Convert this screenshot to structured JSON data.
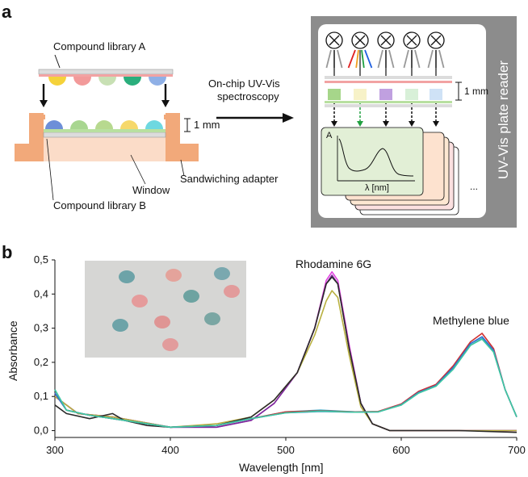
{
  "panel_a": {
    "letter": "a",
    "compound_library_a": "Compound library A",
    "compound_library_b": "Compound library B",
    "window": "Window",
    "sandwiching_adapter": "Sandwiching adapter",
    "spacing_left": "1 mm",
    "spacing_right": "1 mm",
    "arrow_label_line1": "On-chip UV-Vis",
    "arrow_label_line2": "spectroscopy",
    "reader_label": "UV-Vis plate reader",
    "spectrum_y": "A",
    "spectrum_x": "λ [nm]",
    "ellipsis": "...",
    "drop_colors_top": [
      "#f5d23a",
      "#f29a9a",
      "#c8e0b4",
      "#2aae7c",
      "#8fb0e6"
    ],
    "drop_colors_bottom": [
      "#6d8fd8",
      "#a8d690",
      "#b7d98f",
      "#f6d86a",
      "#6ed8e0"
    ]
  },
  "panel_b": {
    "letter": "b",
    "annotation_rhodamine": "Rhodamine 6G",
    "annotation_methylene": "Methylene blue"
  },
  "chart_data": {
    "type": "line",
    "xlabel": "Wavelength [nm]",
    "ylabel": "Absorbance",
    "xlim": [
      300,
      700
    ],
    "ylim": [
      -0.02,
      0.5
    ],
    "x_ticks": [
      "300",
      "400",
      "500",
      "600",
      "700"
    ],
    "y_ticks": [
      "0,0",
      "0,1",
      "0,2",
      "0,3",
      "0,4",
      "0,5"
    ],
    "y_tick_values": [
      0.0,
      0.1,
      0.2,
      0.3,
      0.4,
      0.5
    ],
    "x_tick_values": [
      300,
      400,
      500,
      600,
      700
    ],
    "series": [
      {
        "color": "#e040e0",
        "x": [
          300,
          320,
          350,
          400,
          440,
          470,
          490,
          510,
          525,
          535,
          540,
          545,
          555,
          565,
          575,
          590,
          620,
          650,
          700
        ],
        "values": [
          0.1,
          0.05,
          0.04,
          0.01,
          0.01,
          0.03,
          0.08,
          0.17,
          0.3,
          0.44,
          0.465,
          0.44,
          0.25,
          0.08,
          0.02,
          0.0,
          0.0,
          0.0,
          0.0
        ]
      },
      {
        "color": "#7a2a9a",
        "x": [
          300,
          320,
          350,
          400,
          440,
          470,
          490,
          510,
          525,
          535,
          540,
          545,
          555,
          565,
          575,
          590,
          620,
          650,
          700
        ],
        "values": [
          0.1,
          0.05,
          0.04,
          0.01,
          0.01,
          0.03,
          0.08,
          0.17,
          0.3,
          0.43,
          0.455,
          0.43,
          0.24,
          0.08,
          0.02,
          0.0,
          0.0,
          0.0,
          0.0
        ]
      },
      {
        "color": "#b8b040",
        "x": [
          300,
          320,
          350,
          400,
          440,
          470,
          490,
          510,
          525,
          535,
          540,
          545,
          555,
          565,
          575,
          590,
          620,
          650,
          700
        ],
        "values": [
          0.1,
          0.05,
          0.04,
          0.01,
          0.02,
          0.04,
          0.09,
          0.17,
          0.28,
          0.38,
          0.41,
          0.39,
          0.22,
          0.07,
          0.02,
          0.0,
          0.0,
          0.0,
          0.0
        ]
      },
      {
        "color": "#2a2a2a",
        "x": [
          300,
          310,
          330,
          350,
          360,
          380,
          400,
          440,
          470,
          490,
          510,
          525,
          535,
          540,
          545,
          555,
          565,
          575,
          590,
          620,
          650,
          700
        ],
        "values": [
          0.075,
          0.05,
          0.035,
          0.05,
          0.03,
          0.015,
          0.01,
          0.015,
          0.04,
          0.09,
          0.17,
          0.3,
          0.43,
          0.45,
          0.43,
          0.24,
          0.08,
          0.02,
          0.0,
          0.0,
          0.0,
          -0.005
        ]
      },
      {
        "color": "#2ca8c8",
        "x": [
          300,
          310,
          330,
          360,
          400,
          440,
          470,
          500,
          530,
          560,
          580,
          600,
          615,
          630,
          645,
          660,
          670,
          680,
          690,
          700
        ],
        "values": [
          0.12,
          0.06,
          0.045,
          0.03,
          0.01,
          0.015,
          0.035,
          0.055,
          0.06,
          0.055,
          0.055,
          0.075,
          0.11,
          0.13,
          0.18,
          0.25,
          0.27,
          0.23,
          0.12,
          0.04
        ]
      },
      {
        "color": "#d03030",
        "x": [
          300,
          310,
          330,
          360,
          400,
          440,
          470,
          500,
          530,
          560,
          580,
          600,
          615,
          630,
          645,
          660,
          670,
          680,
          690,
          700
        ],
        "values": [
          0.11,
          0.06,
          0.045,
          0.03,
          0.01,
          0.015,
          0.035,
          0.055,
          0.058,
          0.055,
          0.056,
          0.078,
          0.115,
          0.135,
          0.19,
          0.26,
          0.285,
          0.24,
          0.12,
          0.04
        ]
      },
      {
        "color": "#3070d0",
        "x": [
          300,
          310,
          330,
          360,
          400,
          440,
          470,
          500,
          530,
          560,
          580,
          600,
          615,
          630,
          645,
          660,
          670,
          680,
          690,
          700
        ],
        "values": [
          0.11,
          0.06,
          0.045,
          0.03,
          0.01,
          0.015,
          0.035,
          0.052,
          0.056,
          0.054,
          0.055,
          0.076,
          0.112,
          0.132,
          0.185,
          0.255,
          0.275,
          0.235,
          0.12,
          0.04
        ]
      },
      {
        "color": "#40c8a0",
        "x": [
          300,
          310,
          330,
          360,
          400,
          440,
          470,
          500,
          530,
          560,
          580,
          600,
          615,
          630,
          645,
          660,
          670,
          680,
          690,
          700
        ],
        "values": [
          0.12,
          0.06,
          0.045,
          0.03,
          0.01,
          0.015,
          0.035,
          0.052,
          0.057,
          0.054,
          0.055,
          0.075,
          0.11,
          0.13,
          0.18,
          0.25,
          0.268,
          0.23,
          0.12,
          0.04
        ]
      }
    ]
  },
  "photo": {
    "drop_colors": [
      "#5a9aa0",
      "#e69a90",
      "#6aa0a8",
      "#e89090",
      "#5a9a98",
      "#e49090",
      "#e08a88",
      "#6a9e9a",
      "#5a9aa0",
      "#e49292"
    ]
  }
}
